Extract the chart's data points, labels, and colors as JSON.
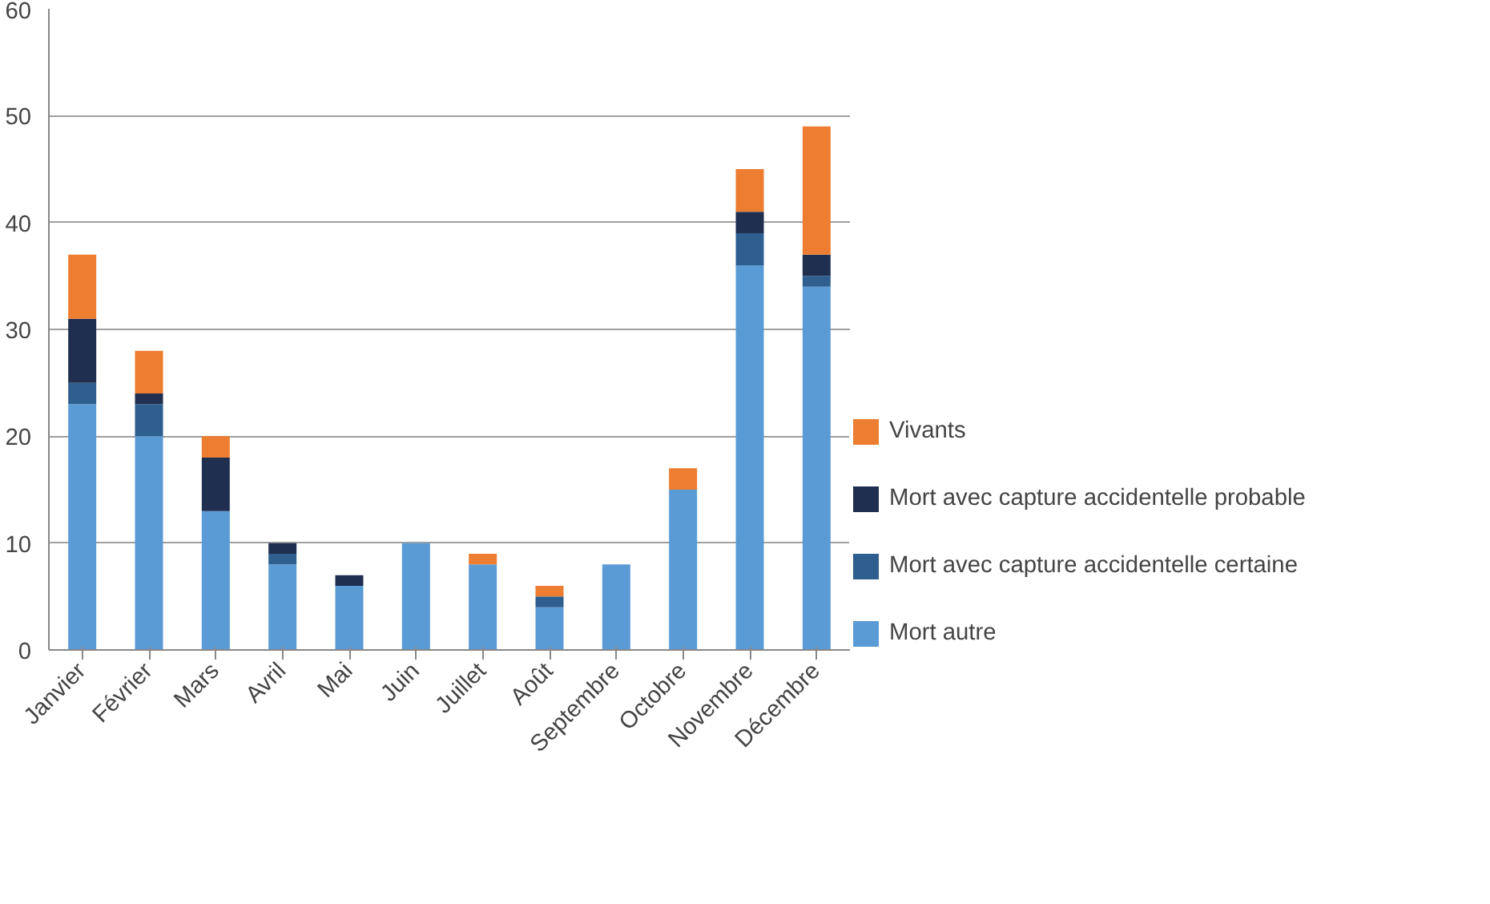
{
  "chart_data": {
    "type": "bar",
    "stacked": true,
    "categories": [
      "Janvier",
      "Février",
      "Mars",
      "Avril",
      "Mai",
      "Juin",
      "Juillet",
      "Août",
      "Septembre",
      "Octobre",
      "Novembre",
      "Décembre"
    ],
    "series": [
      {
        "name": "Mort autre",
        "color": "#5b9bd5",
        "values": [
          23,
          20,
          13,
          8,
          6,
          10,
          8,
          4,
          8,
          15,
          36,
          34
        ]
      },
      {
        "name": "Mort avec capture accidentelle certaine",
        "color": "#2e5f8f",
        "values": [
          2,
          3,
          0,
          1,
          0,
          0,
          0,
          1,
          0,
          0,
          3,
          1
        ]
      },
      {
        "name": "Mort avec capture accidentelle probable",
        "color": "#1f2f4f",
        "values": [
          6,
          1,
          5,
          1,
          1,
          0,
          0,
          0,
          0,
          0,
          2,
          2
        ]
      },
      {
        "name": "Vivants",
        "color": "#ed7d31",
        "values": [
          6,
          4,
          2,
          0,
          0,
          0,
          1,
          1,
          0,
          2,
          4,
          12
        ]
      }
    ],
    "ylim": [
      0,
      60
    ],
    "yticks": [
      0,
      10,
      20,
      30,
      40,
      50,
      60
    ],
    "grid": "y",
    "legend": "right"
  }
}
